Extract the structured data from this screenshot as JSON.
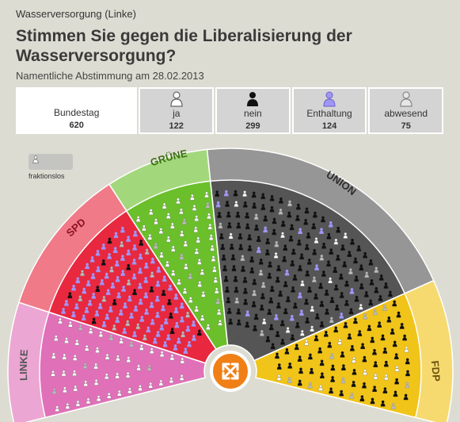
{
  "header": {
    "kicker": "Wasserversorgung (Linke)",
    "title": "Stimmen Sie gegen die Liberalisierung der Wasserversorgung?",
    "subtitle": "Namentliche Abstimmung am 28.02.2013"
  },
  "summary": {
    "total": {
      "label": "Bundestag",
      "count": "620"
    },
    "options": [
      {
        "key": "ja",
        "label": "ja",
        "count": "122",
        "icon": "person-outline-icon"
      },
      {
        "key": "nein",
        "label": "nein",
        "count": "299",
        "icon": "person-filled-icon"
      },
      {
        "key": "enthaltung",
        "label": "Enthaltung",
        "count": "124",
        "icon": "person-abstain-icon"
      },
      {
        "key": "abwesend",
        "label": "abwesend",
        "count": "75",
        "icon": "person-absent-icon"
      }
    ]
  },
  "legend": {
    "label": "fraktionslos",
    "icon": "person-outline-icon"
  },
  "parties": [
    {
      "name": "LINKE",
      "color": "#e070b8"
    },
    {
      "name": "SPD",
      "color": "#e7283f"
    },
    {
      "name": "GRÜNE",
      "color": "#6abf2b"
    },
    {
      "name": "UNION",
      "color": "#555555"
    },
    {
      "name": "FDP",
      "color": "#f0c419"
    }
  ],
  "colors": {
    "ja": "#ffffff",
    "nein": "#111111",
    "enthaltung": "#9f96f5",
    "abwesend": "#bbbbbb",
    "center_button": "#f07f16"
  },
  "center_button": {
    "icon": "expand-arrows-icon"
  }
}
